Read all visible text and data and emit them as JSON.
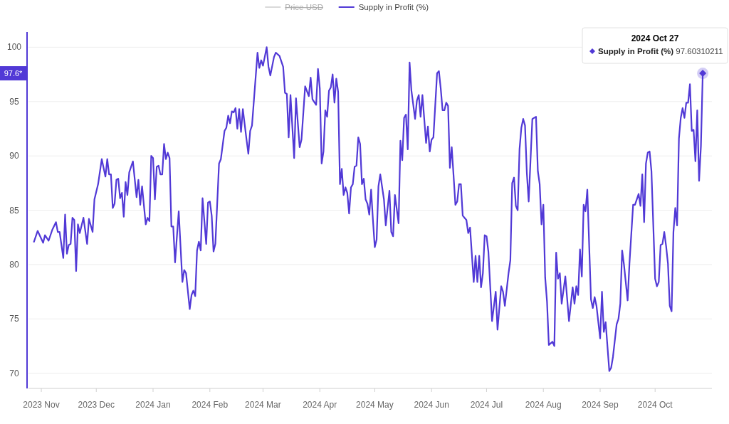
{
  "chart_data": {
    "type": "line",
    "legend": "top",
    "grid": "y",
    "marker": "none",
    "line_style": "solid",
    "xlim": [
      "2023-10-25",
      "2024-11-01"
    ],
    "xticks": [
      {
        "value": "2023-11-01",
        "label": "2023 Nov"
      },
      {
        "value": "2023-12-01",
        "label": "2023 Dec"
      },
      {
        "value": "2024-01-01",
        "label": "2024 Jan"
      },
      {
        "value": "2024-02-01",
        "label": "2024 Feb"
      },
      {
        "value": "2024-03-01",
        "label": "2024 Mar"
      },
      {
        "value": "2024-04-01",
        "label": "2024 Apr"
      },
      {
        "value": "2024-05-01",
        "label": "2024 May"
      },
      {
        "value": "2024-06-01",
        "label": "2024 Jun"
      },
      {
        "value": "2024-07-01",
        "label": "2024 Jul"
      },
      {
        "value": "2024-08-01",
        "label": "2024 Aug"
      },
      {
        "value": "2024-09-01",
        "label": "2024 Sep"
      },
      {
        "value": "2024-10-01",
        "label": "2024 Oct"
      }
    ],
    "ylim": [
      68.6,
      101.4
    ],
    "yticks": [
      70,
      75,
      80,
      85,
      90,
      95,
      100
    ],
    "annotations": [
      "2024 Oct 27",
      "Supply in Profit (%)",
      "97.60310211",
      "97.6*"
    ],
    "series": [
      {
        "name": "Price USD",
        "color": "#d9d9d9"
      },
      {
        "name": "Supply in Profit (%)",
        "color": "#5139d6",
        "x": [
          "2023-10-28",
          "2023-10-30",
          "2023-11-02",
          "2023-11-03",
          "2023-11-05",
          "2023-11-07",
          "2023-11-09",
          "2023-11-10",
          "2023-11-11",
          "2023-11-13",
          "2023-11-14",
          "2023-11-15",
          "2023-11-16",
          "2023-11-17",
          "2023-11-18",
          "2023-11-19",
          "2023-11-20",
          "2023-11-21",
          "2023-11-22",
          "2023-11-24",
          "2023-11-26",
          "2023-11-27",
          "2023-11-29",
          "2023-11-30",
          "2023-12-02",
          "2023-12-04",
          "2023-12-06",
          "2023-12-07",
          "2023-12-08",
          "2023-12-09",
          "2023-12-10",
          "2023-12-11",
          "2023-12-12",
          "2023-12-13",
          "2023-12-14",
          "2023-12-15",
          "2023-12-16",
          "2023-12-17",
          "2023-12-18",
          "2023-12-19",
          "2023-12-21",
          "2023-12-23",
          "2023-12-24",
          "2023-12-25",
          "2023-12-26",
          "2023-12-28",
          "2023-12-29",
          "2023-12-30",
          "2023-12-31",
          "2024-01-01",
          "2024-01-02",
          "2024-01-03",
          "2024-01-04",
          "2024-01-05",
          "2024-01-06",
          "2024-01-07",
          "2024-01-08",
          "2024-01-09",
          "2024-01-10",
          "2024-01-11",
          "2024-01-12",
          "2024-01-13",
          "2024-01-15",
          "2024-01-17",
          "2024-01-18",
          "2024-01-19",
          "2024-01-21",
          "2024-01-22",
          "2024-01-23",
          "2024-01-24",
          "2024-01-25",
          "2024-01-26",
          "2024-01-27",
          "2024-01-28",
          "2024-01-30",
          "2024-01-31",
          "2024-02-01",
          "2024-02-02",
          "2024-02-03",
          "2024-02-04",
          "2024-02-06",
          "2024-02-07",
          "2024-02-09",
          "2024-02-10",
          "2024-02-11",
          "2024-02-12",
          "2024-02-13",
          "2024-02-14",
          "2024-02-15",
          "2024-02-16",
          "2024-02-17",
          "2024-02-18",
          "2024-02-19",
          "2024-02-21",
          "2024-02-22",
          "2024-02-23",
          "2024-02-24",
          "2024-02-27",
          "2024-02-28",
          "2024-02-29",
          "2024-03-01",
          "2024-03-03",
          "2024-03-04",
          "2024-03-05",
          "2024-03-07",
          "2024-03-08",
          "2024-03-10",
          "2024-03-12",
          "2024-03-13",
          "2024-03-14",
          "2024-03-15",
          "2024-03-16",
          "2024-03-18",
          "2024-03-19",
          "2024-03-21",
          "2024-03-22",
          "2024-03-24",
          "2024-03-26",
          "2024-03-27",
          "2024-03-28",
          "2024-03-30",
          "2024-03-31",
          "2024-04-01",
          "2024-04-02",
          "2024-04-03",
          "2024-04-04",
          "2024-04-05",
          "2024-04-06",
          "2024-04-07",
          "2024-04-08",
          "2024-04-09",
          "2024-04-10",
          "2024-04-11",
          "2024-04-12",
          "2024-04-13",
          "2024-04-14",
          "2024-04-15",
          "2024-04-16",
          "2024-04-17",
          "2024-04-18",
          "2024-04-19",
          "2024-04-20",
          "2024-04-21",
          "2024-04-22",
          "2024-04-23",
          "2024-04-24",
          "2024-04-25",
          "2024-04-26",
          "2024-04-27",
          "2024-04-28",
          "2024-04-29",
          "2024-04-30",
          "2024-05-01",
          "2024-05-02",
          "2024-05-03",
          "2024-05-04",
          "2024-05-06",
          "2024-05-07",
          "2024-05-09",
          "2024-05-10",
          "2024-05-11",
          "2024-05-12",
          "2024-05-14",
          "2024-05-15",
          "2024-05-16",
          "2024-05-17",
          "2024-05-18",
          "2024-05-19",
          "2024-05-20",
          "2024-05-21",
          "2024-05-23",
          "2024-05-24",
          "2024-05-25",
          "2024-05-26",
          "2024-05-27",
          "2024-05-29",
          "2024-05-30",
          "2024-05-31",
          "2024-06-01",
          "2024-06-02",
          "2024-06-04",
          "2024-06-05",
          "2024-06-06",
          "2024-06-07",
          "2024-06-08",
          "2024-06-09",
          "2024-06-10",
          "2024-06-11",
          "2024-06-12",
          "2024-06-13",
          "2024-06-14",
          "2024-06-15",
          "2024-06-16",
          "2024-06-17",
          "2024-06-18",
          "2024-06-20",
          "2024-06-21",
          "2024-06-22",
          "2024-06-24",
          "2024-06-25",
          "2024-06-26",
          "2024-06-27",
          "2024-06-28",
          "2024-06-29",
          "2024-06-30",
          "2024-07-01",
          "2024-07-02",
          "2024-07-04",
          "2024-07-06",
          "2024-07-07",
          "2024-07-09",
          "2024-07-10",
          "2024-07-11",
          "2024-07-13",
          "2024-07-14",
          "2024-07-15",
          "2024-07-16",
          "2024-07-17",
          "2024-07-18",
          "2024-07-19",
          "2024-07-20",
          "2024-07-21",
          "2024-07-22",
          "2024-07-23",
          "2024-07-24",
          "2024-07-26",
          "2024-07-27",
          "2024-07-28",
          "2024-07-29",
          "2024-07-30",
          "2024-07-31",
          "2024-08-01",
          "2024-08-02",
          "2024-08-03",
          "2024-08-04",
          "2024-08-06",
          "2024-08-07",
          "2024-08-08",
          "2024-08-09",
          "2024-08-10",
          "2024-08-11",
          "2024-08-13",
          "2024-08-15",
          "2024-08-17",
          "2024-08-18",
          "2024-08-19",
          "2024-08-20",
          "2024-08-21",
          "2024-08-22",
          "2024-08-23",
          "2024-08-24",
          "2024-08-25",
          "2024-08-27",
          "2024-08-28",
          "2024-08-29",
          "2024-08-30",
          "2024-09-01",
          "2024-09-02",
          "2024-09-03",
          "2024-09-04",
          "2024-09-06",
          "2024-09-07",
          "2024-09-08",
          "2024-09-10",
          "2024-09-11",
          "2024-09-12",
          "2024-09-13",
          "2024-09-14",
          "2024-09-16",
          "2024-09-17",
          "2024-09-19",
          "2024-09-20",
          "2024-09-22",
          "2024-09-23",
          "2024-09-24",
          "2024-09-25",
          "2024-09-26",
          "2024-09-27",
          "2024-09-28",
          "2024-09-29",
          "2024-10-01",
          "2024-10-02",
          "2024-10-03",
          "2024-10-04",
          "2024-10-05",
          "2024-10-06",
          "2024-10-07",
          "2024-10-08",
          "2024-10-09",
          "2024-10-10",
          "2024-10-11",
          "2024-10-12",
          "2024-10-13",
          "2024-10-14",
          "2024-10-15",
          "2024-10-16",
          "2024-10-17",
          "2024-10-18",
          "2024-10-19",
          "2024-10-20",
          "2024-10-21",
          "2024-10-22",
          "2024-10-23",
          "2024-10-24",
          "2024-10-25",
          "2024-10-26",
          "2024-10-27"
        ],
        "values": [
          82.1,
          83.1,
          82.0,
          82.7,
          82.2,
          83.2,
          83.9,
          83.0,
          83.0,
          80.6,
          84.6,
          81.0,
          81.8,
          81.9,
          84.3,
          84.1,
          79.4,
          83.7,
          82.9,
          84.3,
          81.9,
          84.2,
          83.0,
          86.0,
          87.4,
          89.7,
          88.1,
          89.7,
          88.3,
          88.3,
          85.2,
          85.6,
          87.8,
          87.9,
          86.1,
          86.6,
          84.4,
          87.6,
          86.4,
          88.5,
          89.5,
          86.2,
          87.8,
          85.5,
          87.2,
          83.7,
          84.3,
          84.0,
          90.0,
          89.8,
          86.0,
          89.0,
          89.1,
          88.3,
          88.3,
          91.1,
          89.7,
          90.3,
          89.8,
          83.5,
          83.5,
          80.2,
          84.9,
          78.4,
          79.5,
          79.2,
          75.9,
          77.2,
          77.6,
          77.1,
          81.3,
          82.1,
          81.3,
          86.1,
          81.9,
          85.7,
          85.8,
          84.5,
          81.2,
          81.9,
          89.3,
          89.7,
          92.3,
          92.6,
          93.7,
          93.0,
          94.1,
          94.0,
          94.4,
          92.5,
          94.3,
          92.2,
          94.3,
          91.5,
          90.2,
          92.3,
          92.8,
          99.5,
          98.1,
          98.8,
          98.3,
          100.0,
          98.2,
          97.4,
          99.1,
          99.5,
          99.2,
          98.2,
          95.8,
          95.7,
          91.7,
          95.6,
          89.8,
          95.3,
          90.8,
          91.5,
          96.4,
          95.5,
          97.2,
          95.2,
          94.7,
          98.0,
          96.2,
          89.3,
          90.4,
          94.2,
          93.6,
          96.0,
          96.3,
          97.5,
          94.9,
          97.1,
          95.9,
          87.4,
          88.8,
          86.4,
          87.1,
          86.6,
          84.7,
          87.1,
          87.4,
          89.0,
          89.1,
          91.7,
          91.1,
          87.4,
          87.9,
          86.0,
          85.6,
          84.6,
          86.9,
          84.1,
          81.6,
          82.3,
          87.2,
          88.3,
          86.0,
          83.6,
          86.8,
          83.0,
          82.6,
          86.4,
          83.8,
          91.4,
          89.6,
          93.5,
          93.8,
          90.6,
          98.6,
          96.0,
          93.4,
          95.1,
          95.6,
          93.6,
          95.6,
          91.2,
          92.7,
          90.4,
          91.5,
          91.7,
          97.6,
          97.8,
          96.2,
          94.2,
          94.2,
          94.9,
          94.6,
          88.9,
          90.8,
          88.2,
          85.5,
          85.8,
          87.4,
          87.4,
          84.5,
          84.1,
          82.9,
          83.4,
          78.4,
          80.8,
          78.4,
          80.8,
          77.9,
          79.2,
          82.7,
          82.6,
          81.2,
          74.8,
          77.5,
          74.0,
          78.0,
          77.5,
          76.2,
          79.2,
          80.4,
          87.5,
          88.0,
          85.4,
          85.0,
          90.6,
          92.6,
          93.4,
          92.8,
          88.4,
          85.8,
          93.4,
          93.5,
          93.6,
          88.6,
          87.4,
          83.7,
          85.5,
          78.8,
          76.6,
          72.6,
          72.9,
          72.5,
          81.1,
          78.7,
          79.2,
          76.4,
          78.9,
          74.8,
          77.9,
          76.4,
          78.0,
          77.2,
          81.4,
          78.9,
          85.5,
          84.9,
          86.9,
          76.8,
          76.0,
          77.0,
          76.2,
          73.2,
          77.5,
          73.8,
          74.7,
          70.2,
          70.5,
          71.5,
          74.5,
          75.0,
          76.4,
          81.3,
          80.0,
          76.7,
          80.1,
          85.5,
          85.5,
          86.5,
          85.4,
          88.3,
          83.9,
          89.3,
          90.3,
          90.4,
          88.6,
          78.7,
          78.0,
          78.4,
          81.8,
          81.9,
          83.0,
          81.7,
          80.1,
          76.2,
          75.7,
          83.0,
          85.2,
          83.6,
          91.6,
          93.5,
          94.4,
          93.5,
          94.9,
          94.9,
          96.6,
          92.3,
          92.4,
          89.5,
          94.2,
          87.7,
          90.9,
          97.6
        ]
      }
    ]
  }
}
